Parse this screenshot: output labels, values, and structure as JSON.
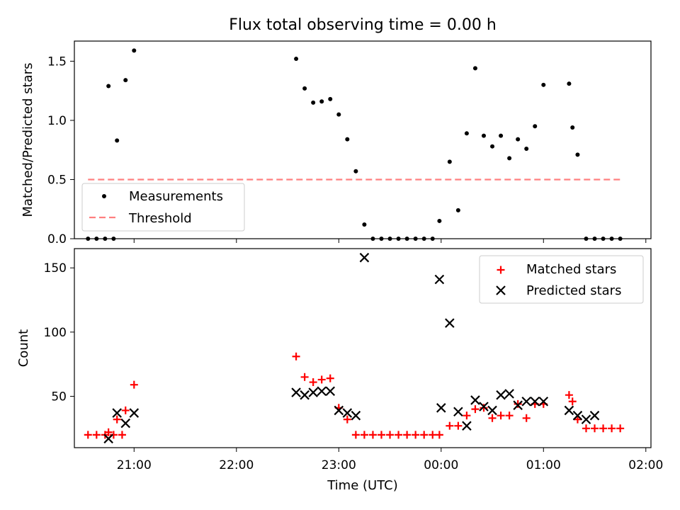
{
  "figure": {
    "title": "Flux total observing time = 0.00 h",
    "xlabel": "Time (UTC)"
  },
  "colors": {
    "measurements": "#000000",
    "threshold": "#ff7f7f",
    "matched": "#ff0000",
    "predicted": "#000000"
  },
  "chart_data": [
    {
      "type": "scatter",
      "ylabel": "Matched/Predicted stars",
      "ylim": [
        0,
        1.67
      ],
      "yticks": [
        0.0,
        0.5,
        1.0,
        1.5
      ],
      "ytick_labels": [
        "0.0",
        "0.5",
        "1.0",
        "1.5"
      ],
      "xlim": [
        "20:25",
        "02:03"
      ],
      "xticks": [
        "21:00",
        "22:00",
        "23:00",
        "00:00",
        "01:00",
        "02:00"
      ],
      "legend": {
        "position": "lower-left",
        "entries": [
          {
            "series": "Measurements",
            "label": "Measurements",
            "style": "marker-dot"
          },
          {
            "series": "Threshold",
            "label": "Threshold",
            "style": "dashed-line"
          }
        ]
      },
      "series": [
        {
          "name": "Measurements",
          "marker": "dot",
          "x": [
            "20:33",
            "20:38",
            "20:43",
            "20:48",
            "20:45",
            "20:50",
            "20:55",
            "21:00",
            "22:35",
            "22:40",
            "22:45",
            "22:50",
            "22:55",
            "23:00",
            "23:05",
            "23:10",
            "23:15",
            "23:20",
            "23:25",
            "23:30",
            "23:35",
            "23:40",
            "23:45",
            "23:50",
            "23:55",
            "23:59",
            "00:05",
            "00:10",
            "00:15",
            "00:20",
            "00:25",
            "00:30",
            "00:35",
            "00:40",
            "00:45",
            "00:50",
            "00:55",
            "01:00",
            "01:15",
            "01:17",
            "01:20",
            "01:25",
            "01:30",
            "01:35",
            "01:40",
            "01:45"
          ],
          "y": [
            0,
            0,
            0,
            0,
            1.29,
            0.83,
            1.34,
            1.59,
            1.52,
            1.27,
            1.15,
            1.16,
            1.18,
            1.05,
            0.84,
            0.57,
            0.12,
            0,
            0,
            0,
            0,
            0,
            0,
            0,
            0,
            0.15,
            0.65,
            0.24,
            0.89,
            1.44,
            0.87,
            0.78,
            0.87,
            0.68,
            0.84,
            0.76,
            0.95,
            1.3,
            1.31,
            0.94,
            0.71,
            0,
            0,
            0,
            0,
            0
          ]
        },
        {
          "name": "Threshold",
          "style": "dashed",
          "x": [
            "20:33",
            "01:45"
          ],
          "y": [
            0.5,
            0.5
          ]
        }
      ]
    },
    {
      "type": "scatter",
      "ylabel": "Count",
      "ylim": [
        10,
        165
      ],
      "yticks": [
        50,
        100,
        150
      ],
      "ytick_labels": [
        "50",
        "100",
        "150"
      ],
      "xlim": [
        "20:25",
        "02:03"
      ],
      "xticks": [
        "21:00",
        "22:00",
        "23:00",
        "00:00",
        "01:00",
        "02:00"
      ],
      "xtick_labels": [
        "21:00",
        "22:00",
        "23:00",
        "00:00",
        "01:00",
        "02:00"
      ],
      "legend": {
        "position": "top-right",
        "entries": [
          {
            "series": "Matched stars",
            "label": "Matched stars",
            "style": "marker-plus"
          },
          {
            "series": "Predicted stars",
            "label": "Predicted stars",
            "style": "marker-x"
          }
        ]
      },
      "series": [
        {
          "name": "Matched stars",
          "marker": "plus",
          "x": [
            "20:33",
            "20:38",
            "20:43",
            "20:48",
            "20:53",
            "20:45",
            "20:50",
            "20:55",
            "21:00",
            "22:35",
            "22:40",
            "22:45",
            "22:50",
            "22:55",
            "23:00",
            "23:05",
            "23:10",
            "23:15",
            "23:20",
            "23:25",
            "23:30",
            "23:35",
            "23:40",
            "23:45",
            "23:50",
            "23:55",
            "23:59",
            "00:05",
            "00:10",
            "00:15",
            "00:20",
            "00:25",
            "00:30",
            "00:35",
            "00:40",
            "00:45",
            "00:50",
            "00:55",
            "01:00",
            "01:15",
            "01:17",
            "01:20",
            "01:25",
            "01:30",
            "01:35",
            "01:40",
            "01:45"
          ],
          "y": [
            20,
            20,
            20,
            20,
            20,
            22,
            32,
            39,
            59,
            81,
            65,
            61,
            63,
            64,
            41,
            32,
            20,
            20,
            20,
            20,
            20,
            20,
            20,
            20,
            20,
            20,
            20,
            27,
            27,
            35,
            40,
            41,
            33,
            35,
            35,
            44,
            33,
            44,
            44,
            51,
            46,
            32,
            25,
            25,
            25,
            25,
            25
          ]
        },
        {
          "name": "Predicted stars",
          "marker": "x",
          "x": [
            "20:45",
            "20:50",
            "20:55",
            "21:00",
            "22:35",
            "22:40",
            "22:45",
            "22:50",
            "22:55",
            "23:00",
            "23:05",
            "23:10",
            "23:15",
            "23:59",
            "00:00",
            "00:05",
            "00:10",
            "00:15",
            "00:20",
            "00:25",
            "00:30",
            "00:35",
            "00:40",
            "00:45",
            "00:50",
            "00:55",
            "01:00",
            "01:15",
            "01:20",
            "01:25",
            "01:30"
          ],
          "y": [
            17,
            37,
            29,
            37,
            53,
            51,
            53,
            54,
            54,
            39,
            37,
            35,
            158,
            141,
            41,
            107,
            38,
            27,
            47,
            42,
            39,
            51,
            52,
            43,
            46,
            46,
            46,
            39,
            35,
            32,
            35
          ]
        }
      ]
    }
  ]
}
